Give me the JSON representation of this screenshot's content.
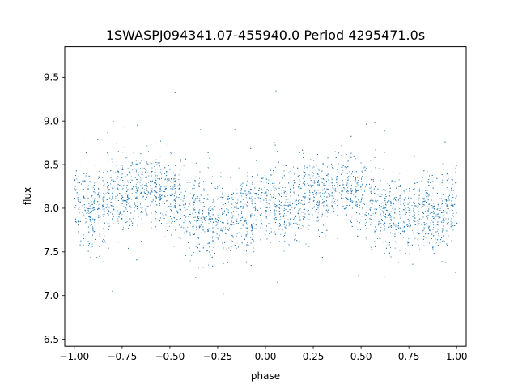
{
  "chart_data": {
    "type": "scatter",
    "title": "1SWASPJ094341.07-455940.0 Period 4295471.0s",
    "xlabel": "phase",
    "ylabel": "flux",
    "xlim": [
      -1.05,
      1.05
    ],
    "ylim": [
      6.42,
      9.85
    ],
    "x_ticks": [
      -1.0,
      -0.75,
      -0.5,
      -0.25,
      0.0,
      0.25,
      0.5,
      0.75,
      1.0
    ],
    "x_tick_labels": [
      "−1.00",
      "−0.75",
      "−0.50",
      "−0.25",
      "0.00",
      "0.25",
      "0.50",
      "0.75",
      "1.00"
    ],
    "y_ticks": [
      6.5,
      7.0,
      7.5,
      8.0,
      8.5,
      9.0,
      9.5
    ],
    "y_tick_labels": [
      "6.5",
      "7.0",
      "7.5",
      "8.0",
      "8.5",
      "9.0",
      "9.5"
    ],
    "grid": false,
    "marker_color": "#1f77b4",
    "series": [
      {
        "phase_range": [
          -1.0,
          1.0
        ],
        "mean_flux_profile": [
          {
            "phase": -1.0,
            "flux": 8.05
          },
          {
            "phase": -0.9,
            "flux": 8.0
          },
          {
            "phase": -0.75,
            "flux": 8.15
          },
          {
            "phase": -0.6,
            "flux": 8.25
          },
          {
            "phase": -0.5,
            "flux": 8.15
          },
          {
            "phase": -0.4,
            "flux": 7.95
          },
          {
            "phase": -0.25,
            "flux": 7.9
          },
          {
            "phase": -0.1,
            "flux": 7.95
          },
          {
            "phase": 0.0,
            "flux": 8.05
          },
          {
            "phase": 0.1,
            "flux": 8.0
          },
          {
            "phase": 0.25,
            "flux": 8.15
          },
          {
            "phase": 0.4,
            "flux": 8.25
          },
          {
            "phase": 0.5,
            "flux": 8.15
          },
          {
            "phase": 0.6,
            "flux": 7.95
          },
          {
            "phase": 0.75,
            "flux": 7.9
          },
          {
            "phase": 0.9,
            "flux": 7.95
          },
          {
            "phase": 1.0,
            "flux": 8.05
          }
        ],
        "scatter_sigma": 0.22
      }
    ]
  }
}
